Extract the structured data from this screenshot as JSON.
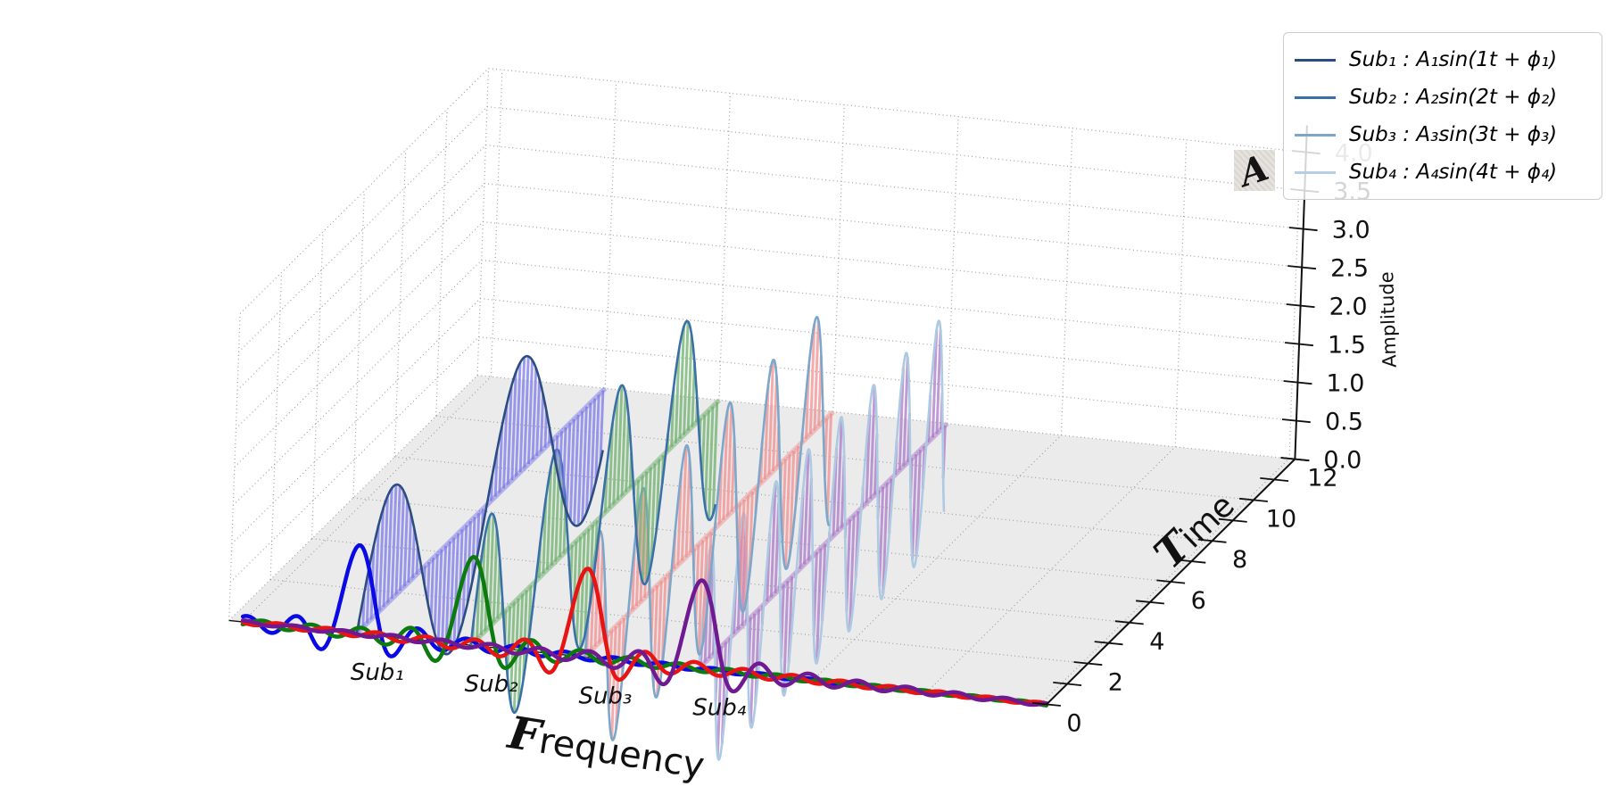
{
  "legend": {
    "entries": [
      {
        "label": "Sub₁ : A₁sin(1t + ϕ₁)",
        "color": "#2c4d82"
      },
      {
        "label": "Sub₂ : A₂sin(2t + ϕ₂)",
        "color": "#3a70a8"
      },
      {
        "label": "Sub₃ : A₃sin(3t + ϕ₃)",
        "color": "#7ca7cb"
      },
      {
        "label": "Sub₄ : A₄sin(4t + ϕ₄)",
        "color": "#b6cfe4"
      }
    ]
  },
  "chart_data": {
    "type": "line",
    "projection": "3d",
    "title": "",
    "grid": "dotted",
    "legend_position": "upper right",
    "x_axis": {
      "label": "Frequency",
      "script_initial": "F",
      "label_rest": "requency",
      "range": [
        0,
        7
      ],
      "subcarrier_positions": [
        1,
        2,
        3,
        4
      ]
    },
    "y_axis": {
      "label": "Time",
      "script_initial": "T",
      "label_rest": "ime",
      "range": [
        0,
        12
      ],
      "ticks": [
        "0",
        "2",
        "4",
        "6",
        "8",
        "10",
        "12"
      ]
    },
    "z_axis": {
      "label": "Amplitude",
      "script_initial": "A",
      "range": [
        0,
        4
      ],
      "ticks": [
        "0.0",
        "0.5",
        "1.0",
        "1.5",
        "2.0",
        "2.5",
        "3.0",
        "3.5",
        "4.0"
      ]
    },
    "wave_amplitude": 1.5,
    "spectrum": {
      "shape": "sinc",
      "peak_amplitude": 1.15,
      "main_lobe_half_width": 0.215
    },
    "subcarriers": [
      {
        "k": 1,
        "label": "Sub₁",
        "formula": "A₁sin(1t + ϕ₁)",
        "amplitude": 1,
        "phase": 0,
        "outline_color": "#2c4d82",
        "stem_color": "#7b79ea",
        "spectrum_color": "#0a0ae4"
      },
      {
        "k": 2,
        "label": "Sub₂",
        "formula": "A₂sin(2t + ϕ₂)",
        "amplitude": 1,
        "phase": 0,
        "outline_color": "#3a70a8",
        "stem_color": "#6cb06c",
        "spectrum_color": "#0d7a0d"
      },
      {
        "k": 3,
        "label": "Sub₃",
        "formula": "A₃sin(3t + ϕ₃)",
        "amplitude": 1,
        "phase": 0,
        "outline_color": "#7ca7cb",
        "stem_color": "#f28f8f",
        "spectrum_color": "#e81414"
      },
      {
        "k": 4,
        "label": "Sub₄",
        "formula": "A₄sin(4t + ϕ₄)",
        "amplitude": 1,
        "phase": 0,
        "outline_color": "#aec9e2",
        "stem_color": "#a878c8",
        "spectrum_color": "#701a92"
      }
    ]
  }
}
